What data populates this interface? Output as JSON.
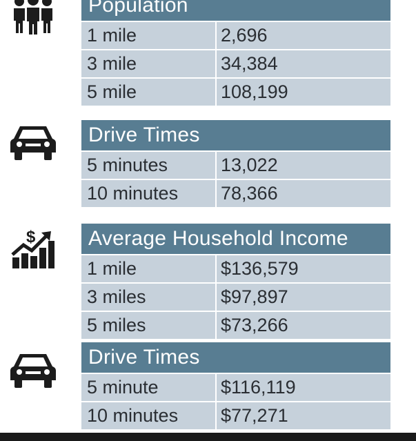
{
  "colors": {
    "header_bg": "#587d92",
    "row_bg": "#c6d1db",
    "text": "#2a2e33",
    "icon": "#1c1c1c"
  },
  "sections": [
    {
      "icon": "people-icon",
      "title": "Population",
      "rows": [
        {
          "label": "1 mile",
          "value": "2,696"
        },
        {
          "label": "3 mile",
          "value": "34,384"
        },
        {
          "label": "5 mile",
          "value": "108,199"
        }
      ]
    },
    {
      "icon": "car-icon",
      "title": "Drive Times",
      "rows": [
        {
          "label": "5 minutes",
          "value": "13,022"
        },
        {
          "label": "10 minutes",
          "value": "78,366"
        }
      ]
    },
    {
      "icon": "income-chart-icon",
      "title": "Average Household Income",
      "rows": [
        {
          "label": "1 mile",
          "value": "$136,579"
        },
        {
          "label": "3 miles",
          "value": "$97,897"
        },
        {
          "label": "5 miles",
          "value": "$73,266"
        }
      ]
    },
    {
      "icon": "car-icon",
      "title": "Drive Times",
      "rows": [
        {
          "label": "5 minute",
          "value": "$116,119"
        },
        {
          "label": "10 minutes",
          "value": "$77,271"
        }
      ]
    }
  ]
}
